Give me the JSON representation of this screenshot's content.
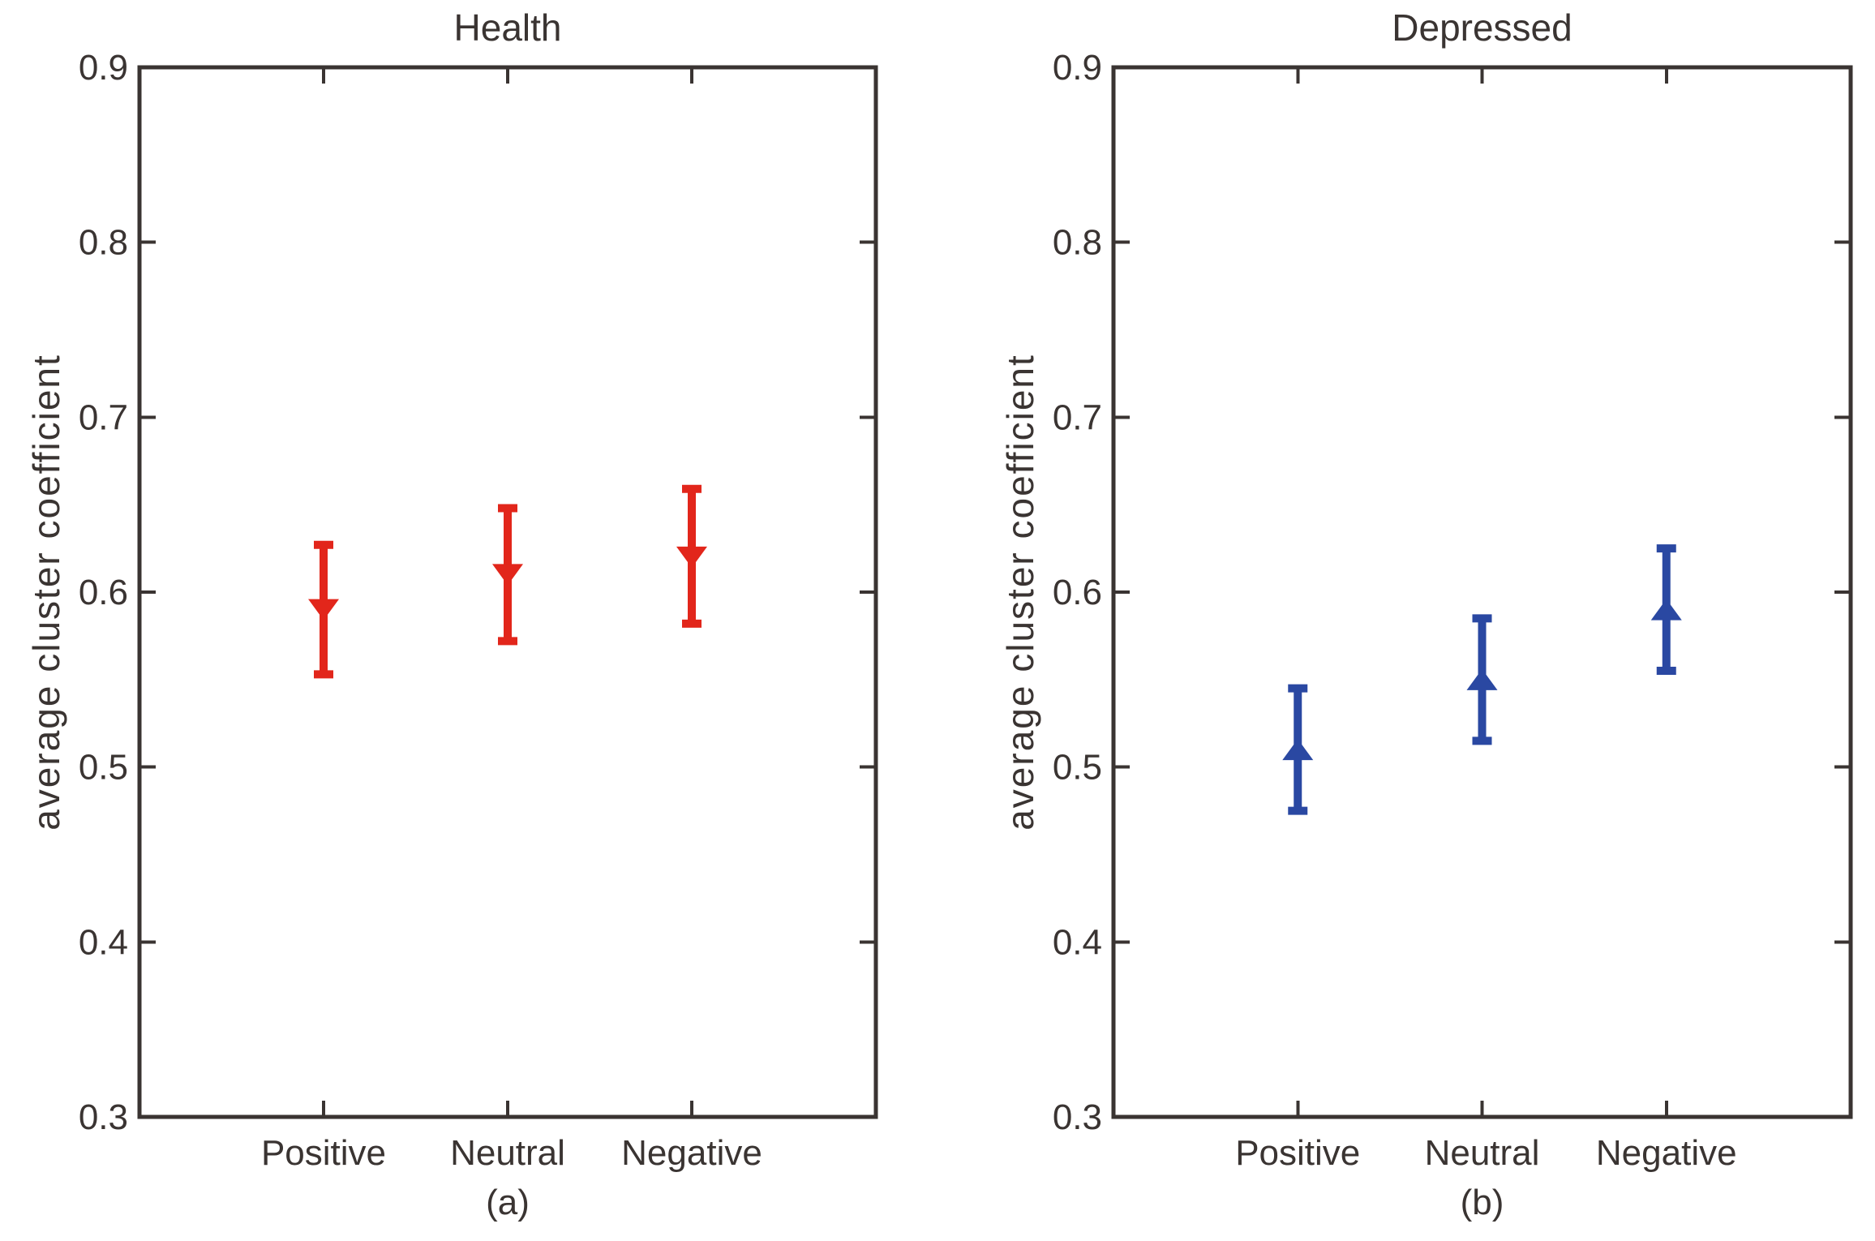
{
  "page": {
    "background": "#ffffff",
    "text_color": "#3a3432",
    "axis_color": "#3a3432"
  },
  "chart_data": [
    {
      "type": "errorbar",
      "panel": "a",
      "title": "Health",
      "caption": "(a)",
      "ylabel": "average cluster coefficient",
      "xlabel": "",
      "categories": [
        "Positive",
        "Neutral",
        "Negative"
      ],
      "means": [
        0.59,
        0.61,
        0.62
      ],
      "err_lower": [
        0.553,
        0.572,
        0.582
      ],
      "err_upper": [
        0.627,
        0.648,
        0.659
      ],
      "marker": "triangle-down",
      "color": "#e2261b",
      "ylim": [
        0.3,
        0.9
      ],
      "ytick_values": [
        0.3,
        0.4,
        0.5,
        0.6,
        0.7,
        0.8,
        0.9
      ],
      "ytick_labels": [
        "0.3",
        "0.4",
        "0.5",
        "0.6",
        "0.7",
        "0.8",
        "0.9"
      ],
      "grid": false,
      "box": true,
      "legend": "none"
    },
    {
      "type": "errorbar",
      "panel": "b",
      "title": "Depressed",
      "caption": "(b)",
      "ylabel": "average cluster coefficient",
      "xlabel": "",
      "categories": [
        "Positive",
        "Neutral",
        "Negative"
      ],
      "means": [
        0.51,
        0.55,
        0.59
      ],
      "err_lower": [
        0.475,
        0.515,
        0.555
      ],
      "err_upper": [
        0.545,
        0.585,
        0.625
      ],
      "marker": "triangle-up",
      "color": "#2a48a2",
      "ylim": [
        0.3,
        0.9
      ],
      "ytick_values": [
        0.3,
        0.4,
        0.5,
        0.6,
        0.7,
        0.8,
        0.9
      ],
      "ytick_labels": [
        "0.3",
        "0.4",
        "0.5",
        "0.6",
        "0.7",
        "0.8",
        "0.9"
      ],
      "grid": false,
      "box": true,
      "legend": "none"
    }
  ]
}
